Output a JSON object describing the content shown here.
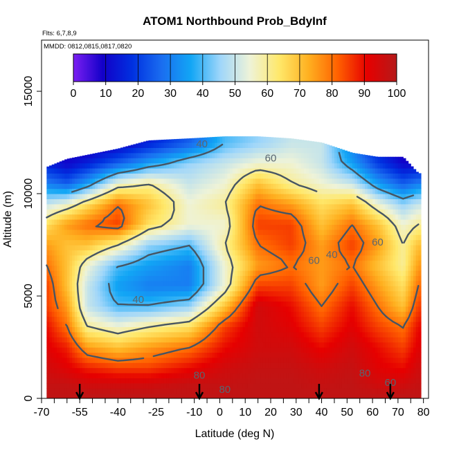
{
  "chart_data": {
    "type": "heatmap",
    "title": "ATOM1 Northbound Prob_BdyInf",
    "subtitle_flights": "Flts: 6,7,8,9",
    "subtitle_dates": "MMDD: 0812,0815,0817,0820",
    "xlabel": "Latitude (deg N)",
    "ylabel": "Altitude (m)",
    "xlim": [
      -70,
      82
    ],
    "ylim": [
      0,
      17500
    ],
    "x_ticks": [
      -70,
      -55,
      -40,
      -25,
      -10,
      0,
      10,
      20,
      30,
      40,
      50,
      60,
      70,
      80
    ],
    "x_minor_ticks": [
      -65,
      -60,
      -50,
      -45,
      -35,
      -30,
      -20,
      -15,
      -5,
      5,
      15,
      25,
      35,
      45,
      55,
      65,
      75
    ],
    "y_ticks": [
      0,
      5000,
      10000,
      15000
    ],
    "colorbar": {
      "min": 0,
      "max": 100,
      "ticks": [
        0,
        10,
        20,
        30,
        40,
        50,
        60,
        70,
        80,
        90,
        100
      ],
      "colors": [
        "#7b1ff2",
        "#1200c8",
        "#0030e0",
        "#1a6df0",
        "#12a6f5",
        "#9fd6fa",
        "#eef3d8",
        "#ffe86a",
        "#ffb020",
        "#ff6000",
        "#e60000",
        "#b51a1a"
      ]
    },
    "profiles": [
      {
        "lat": -68,
        "top": 11300,
        "bottom": 0
      },
      {
        "lat": -60,
        "top": 11700,
        "bottom": 0
      },
      {
        "lat": -52,
        "top": 11900,
        "bottom": 0
      },
      {
        "lat": -40,
        "top": 12200,
        "bottom": 0
      },
      {
        "lat": -28,
        "top": 12600,
        "bottom": 0
      },
      {
        "lat": -12,
        "top": 12700,
        "bottom": 0
      },
      {
        "lat": 2,
        "top": 12800,
        "bottom": 0
      },
      {
        "lat": 15,
        "top": 12800,
        "bottom": 0
      },
      {
        "lat": 28,
        "top": 12700,
        "bottom": 0
      },
      {
        "lat": 40,
        "top": 12500,
        "bottom": 0
      },
      {
        "lat": 52,
        "top": 12000,
        "bottom": 0
      },
      {
        "lat": 62,
        "top": 11800,
        "bottom": 0
      },
      {
        "lat": 72,
        "top": 11800,
        "bottom": 0
      },
      {
        "lat": 78,
        "top": 11000,
        "bottom": 0
      }
    ],
    "prob_by_altitude": [
      {
        "alt": 12500,
        "values": [
          null,
          null,
          5,
          8,
          15,
          25,
          40,
          45,
          50,
          50,
          30,
          15,
          5,
          null
        ]
      },
      {
        "alt": 11500,
        "values": [
          15,
          10,
          15,
          25,
          35,
          45,
          50,
          55,
          55,
          50,
          35,
          20,
          10,
          10
        ]
      },
      {
        "alt": 10500,
        "values": [
          30,
          25,
          35,
          55,
          60,
          50,
          55,
          70,
          60,
          55,
          50,
          35,
          25,
          30
        ]
      },
      {
        "alt": 9500,
        "values": [
          50,
          55,
          65,
          80,
          70,
          55,
          60,
          80,
          75,
          65,
          70,
          55,
          45,
          50
        ]
      },
      {
        "alt": 8500,
        "values": [
          65,
          75,
          80,
          85,
          65,
          55,
          55,
          85,
          85,
          70,
          80,
          70,
          55,
          60
        ]
      },
      {
        "alt": 7500,
        "values": [
          75,
          70,
          70,
          60,
          45,
          40,
          60,
          80,
          85,
          75,
          85,
          75,
          60,
          70
        ]
      },
      {
        "alt": 6500,
        "values": [
          80,
          70,
          55,
          40,
          35,
          30,
          55,
          75,
          80,
          75,
          80,
          70,
          60,
          75
        ]
      },
      {
        "alt": 5500,
        "values": [
          85,
          70,
          50,
          35,
          30,
          30,
          55,
          85,
          85,
          75,
          85,
          75,
          65,
          80
        ]
      },
      {
        "alt": 4500,
        "values": [
          85,
          75,
          50,
          40,
          40,
          45,
          70,
          95,
          90,
          80,
          90,
          80,
          70,
          85
        ]
      },
      {
        "alt": 3500,
        "values": [
          90,
          80,
          60,
          55,
          60,
          65,
          85,
          95,
          92,
          85,
          92,
          85,
          80,
          90
        ]
      },
      {
        "alt": 2500,
        "values": [
          92,
          88,
          75,
          70,
          75,
          80,
          90,
          95,
          95,
          90,
          95,
          90,
          85,
          92
        ]
      },
      {
        "alt": 1500,
        "values": [
          95,
          92,
          88,
          85,
          85,
          90,
          95,
          97,
          97,
          95,
          97,
          92,
          90,
          95
        ]
      },
      {
        "alt": 700,
        "values": [
          97,
          97,
          95,
          95,
          95,
          97,
          97,
          98,
          98,
          97,
          98,
          95,
          95,
          97
        ]
      },
      {
        "alt": 200,
        "values": [
          98,
          98,
          98,
          98,
          98,
          98,
          98,
          98,
          98,
          98,
          98,
          98,
          98,
          98
        ]
      }
    ],
    "contour_labels": [
      {
        "text": "40",
        "lat": -7,
        "alt": 12400
      },
      {
        "text": "60",
        "lat": 20,
        "alt": 11700
      },
      {
        "text": "60",
        "lat": 37,
        "alt": 6700
      },
      {
        "text": "40",
        "lat": -32,
        "alt": 4800
      },
      {
        "text": "60",
        "lat": 62,
        "alt": 7600
      },
      {
        "text": "40",
        "lat": 44,
        "alt": 7000
      },
      {
        "text": "80",
        "lat": 57,
        "alt": 1200
      },
      {
        "text": "60",
        "lat": 67,
        "alt": 750
      },
      {
        "text": "80",
        "lat": -8,
        "alt": 1100
      },
      {
        "text": "80",
        "lat": 2,
        "alt": 400
      }
    ],
    "surface_arrows": [
      -55,
      -8,
      39,
      67
    ]
  }
}
